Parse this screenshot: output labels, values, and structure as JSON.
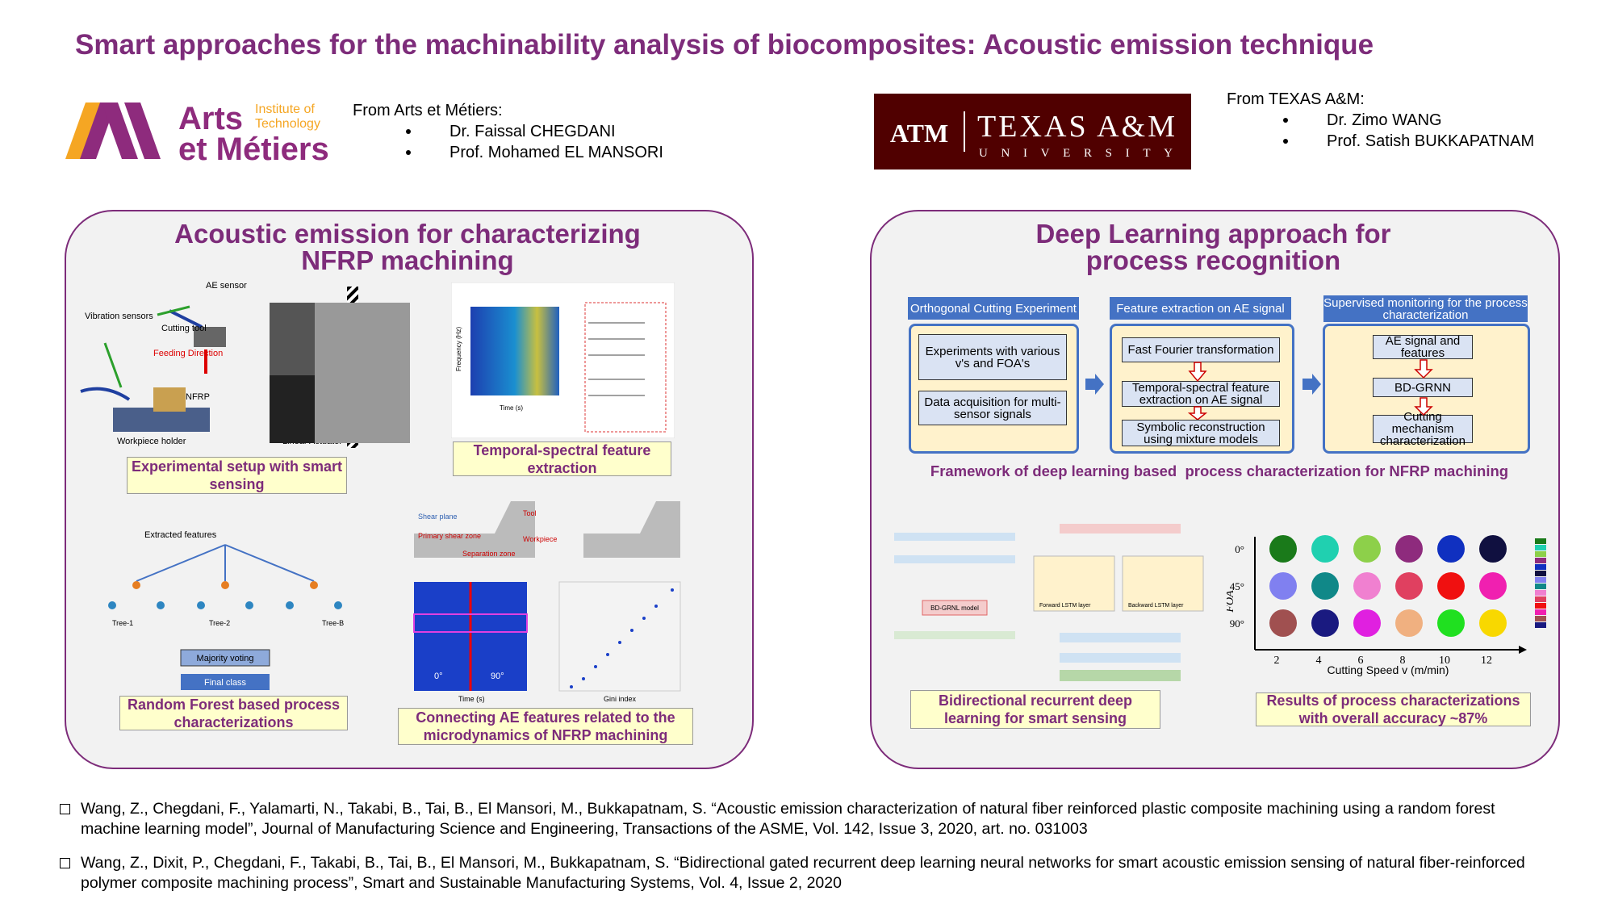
{
  "header": {
    "title": "Smart approaches for the machinability analysis of biocomposites: Acoustic emission technique"
  },
  "logos": {
    "arts": {
      "name1": "Arts",
      "name2": "et Métiers",
      "sub1": "Institute of",
      "sub2": "Technology"
    },
    "tamu": {
      "monogram": "ATM",
      "name": "TEXAS A&M",
      "sub": "UNIVERSITY"
    }
  },
  "collaborators": [
    {
      "heading": "From Arts et Métiers:",
      "names": [
        "Dr. Faissal CHEGDANI",
        "Prof. Mohamed EL MANSORI"
      ]
    },
    {
      "heading": "From TEXAS A&M:",
      "names": [
        "Dr. Zimo WANG",
        "Prof. Satish BUKKAPATNAM"
      ]
    }
  ],
  "left_panel": {
    "title_lines": [
      "Acoustic emission for characterizing",
      "NFRP machining"
    ],
    "captions": [
      "Experimental setup with smart sensing",
      "Temporal-spectral feature extraction",
      "Random Forest based process characterizations",
      "Connecting AE features related to the microdynamics of NFRP machining"
    ],
    "setup_labels": [
      "AE sensor",
      "Vibration sensors",
      "Cutting tool",
      "Feeding Direction",
      "NFRP",
      "Workpiece holder",
      "Linear Actuator"
    ],
    "spectrogram_labels": [
      "Frequency (Hz)",
      "Time (s)"
    ],
    "forest_labels": [
      "Extracted features",
      "Tree-1",
      "Tree-2",
      "Tree-B",
      "Majority voting",
      "Final class"
    ],
    "micro_labels": [
      "Shear plane",
      "Tool",
      "Primary shear zone",
      "Workpiece",
      "Separation zone",
      "0°",
      "90°",
      "Time (s)",
      "Gini index"
    ]
  },
  "right_panel": {
    "title_lines": [
      "Deep Learning approach for",
      "process recognition"
    ],
    "framework": [
      {
        "header": "Orthogonal Cutting Experiment",
        "boxes": [
          "Experiments with various v's and FOA's",
          "Data acquisition for multi-sensor signals"
        ]
      },
      {
        "header": "Feature extraction on AE signal",
        "boxes": [
          "Fast Fourier transformation",
          "Temporal-spectral feature extraction on AE signal",
          "Symbolic reconstruction using mixture models"
        ]
      },
      {
        "header": "Supervised monitoring for the process characterization",
        "boxes": [
          "AE signal and features",
          "BD-GRNN",
          "Cutting mechanism characterization"
        ]
      }
    ],
    "framework_caption": "Framework of deep learning based  process characterization for NFRP machining",
    "network_labels": [
      "Forward LSTM layer",
      "Backward LSTM layer",
      "BD-GRNL model"
    ],
    "results": {
      "y_label": "FOA",
      "y_ticks": [
        "0°",
        "45°",
        "90°"
      ],
      "x_ticks": [
        "2",
        "4",
        "6",
        "8",
        "10",
        "12"
      ],
      "x_label": "Cutting Speed v (m/min)"
    },
    "captions": [
      "Bidirectional recurrent deep learning for smart sensing",
      "Results of process characterizations with overall accuracy ~87%"
    ]
  },
  "references": [
    "Wang, Z., Chegdani, F., Yalamarti, N., Takabi, B., Tai, B., El Mansori, M., Bukkapatnam, S. “Acoustic emission characterization of natural fiber reinforced plastic composite machining using a random forest machine learning model”, Journal of Manufacturing Science and Engineering, Transactions of the ASME, Vol. 142, Issue 3, 2020, art. no. 031003",
    "Wang, Z., Dixit, P., Chegdani, F., Takabi, B., Tai, B., El Mansori, M., Bukkapatnam, S. “Bidirectional gated recurrent deep learning neural networks for smart acoustic emission sensing of natural fiber-reinforced polymer composite machining process”, Smart and Sustainable Manufacturing Systems, Vol. 4, Issue 2, 2020"
  ]
}
